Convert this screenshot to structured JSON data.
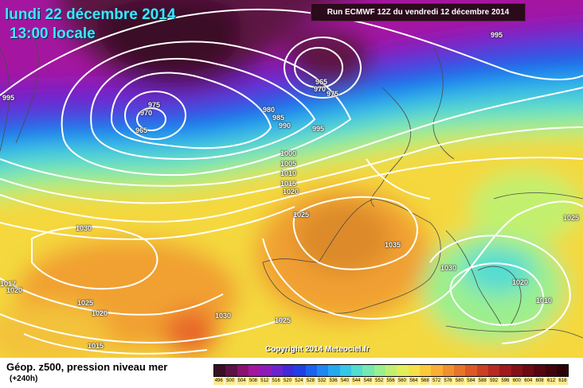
{
  "header": {
    "date": "lundi 22 décembre 2014",
    "local_time": "13:00 locale",
    "run_info": "Run ECMWF 12Z du vendredi 12 décembre 2014"
  },
  "copyright": "Copyright 2014 Meteociel.fr",
  "footer": {
    "title": "Géop. z500, pression niveau mer",
    "forecast_step": "(+240h)"
  },
  "legend": {
    "labels": [
      "496",
      "500",
      "504",
      "508",
      "512",
      "516",
      "520",
      "524",
      "528",
      "532",
      "536",
      "540",
      "544",
      "548",
      "552",
      "556",
      "560",
      "564",
      "568",
      "572",
      "576",
      "580",
      "584",
      "588",
      "592",
      "596",
      "600",
      "604",
      "608",
      "612",
      "616"
    ],
    "colors": [
      "#3a0f25",
      "#5e1244",
      "#8a1170",
      "#a516a0",
      "#8f19b9",
      "#6d22ce",
      "#3f2ad9",
      "#1f40e6",
      "#1d62ee",
      "#1f86f2",
      "#26a8ef",
      "#36c6e6",
      "#52dcd2",
      "#76e8b2",
      "#9cef8e",
      "#c2f06e",
      "#e2ee5a",
      "#f6e04a",
      "#fbc93c",
      "#f9ae34",
      "#f1912e",
      "#e87429",
      "#dc5825",
      "#cc3f22",
      "#b82a20",
      "#a0191c",
      "#861018",
      "#6e0a14",
      "#560610",
      "#40040c",
      "#2c0208"
    ]
  },
  "isobar_labels": [
    {
      "id": "low-center",
      "text": "965"
    },
    {
      "id": "low-970",
      "text": "970"
    },
    {
      "id": "low-975",
      "text": "975"
    },
    {
      "id": "low-980",
      "text": "980"
    },
    {
      "id": "low-985",
      "text": "985"
    },
    {
      "id": "low-990",
      "text": "990"
    },
    {
      "id": "ne-965",
      "text": "965"
    },
    {
      "id": "ne-970",
      "text": "970"
    },
    {
      "id": "ne-975",
      "text": "975"
    },
    {
      "id": "w-995",
      "text": "995"
    },
    {
      "id": "ne-995",
      "text": "995"
    },
    {
      "id": "c-995",
      "text": "995"
    },
    {
      "id": "c-1000",
      "text": "1000"
    },
    {
      "id": "c-1005",
      "text": "1005"
    },
    {
      "id": "c-1010",
      "text": "1010"
    },
    {
      "id": "c-1015",
      "text": "1015"
    },
    {
      "id": "c-1020",
      "text": "1020"
    },
    {
      "id": "c-1025",
      "text": "1025"
    },
    {
      "id": "w-1030",
      "text": "1030"
    },
    {
      "id": "hi-1035",
      "text": "1035"
    },
    {
      "id": "it-1030",
      "text": "1030"
    },
    {
      "id": "gr-1020",
      "text": "1020"
    },
    {
      "id": "tr-1010",
      "text": "1010"
    },
    {
      "id": "e-1025",
      "text": "1025"
    },
    {
      "id": "sw-1025",
      "text": "1025"
    },
    {
      "id": "sw-1020",
      "text": "1020"
    },
    {
      "id": "s-1030",
      "text": "1030"
    },
    {
      "id": "s-1025",
      "text": "1025"
    },
    {
      "id": "w-1020",
      "text": "1020"
    },
    {
      "id": "w-1017",
      "text": "1017"
    },
    {
      "id": "s-1015",
      "text": "1015"
    }
  ]
}
